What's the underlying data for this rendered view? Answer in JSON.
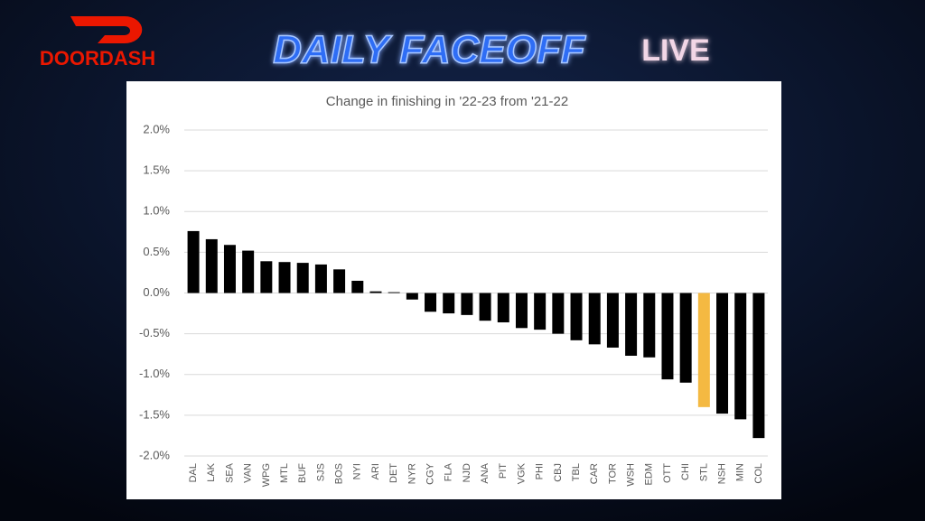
{
  "header": {
    "logo": "DOORDASH",
    "title": "DAILY FACEOFF",
    "badge": "LIVE"
  },
  "chart_data": {
    "type": "bar",
    "title": "Change in finishing in '22-23 from '21-22",
    "categories": [
      "DAL",
      "LAK",
      "SEA",
      "VAN",
      "WPG",
      "MTL",
      "BUF",
      "SJS",
      "BOS",
      "NYI",
      "ARI",
      "DET",
      "NYR",
      "CGY",
      "FLA",
      "NJD",
      "ANA",
      "PIT",
      "VGK",
      "PHI",
      "CBJ",
      "TBL",
      "CAR",
      "TOR",
      "WSH",
      "EDM",
      "OTT",
      "CHI",
      "STL",
      "NSH",
      "MIN",
      "COL"
    ],
    "values": [
      0.76,
      0.66,
      0.59,
      0.52,
      0.39,
      0.38,
      0.37,
      0.35,
      0.29,
      0.15,
      0.02,
      0.01,
      -0.08,
      -0.23,
      -0.25,
      -0.27,
      -0.34,
      -0.36,
      -0.43,
      -0.45,
      -0.5,
      -0.58,
      -0.63,
      -0.67,
      -0.77,
      -0.79,
      -1.06,
      -1.1,
      -1.4,
      -1.48,
      -1.55,
      -1.78
    ],
    "colors": [
      "#000000",
      "#000000",
      "#000000",
      "#000000",
      "#000000",
      "#000000",
      "#000000",
      "#000000",
      "#000000",
      "#000000",
      "#000000",
      "#000000",
      "#000000",
      "#000000",
      "#000000",
      "#000000",
      "#000000",
      "#000000",
      "#000000",
      "#000000",
      "#000000",
      "#000000",
      "#000000",
      "#000000",
      "#000000",
      "#000000",
      "#000000",
      "#000000",
      "#f4b942",
      "#000000",
      "#000000",
      "#000000"
    ],
    "ylim": [
      -2,
      2
    ],
    "yticks": [
      {
        "value": 2,
        "label": "2.0%"
      },
      {
        "value": 1.5,
        "label": "1.5%"
      },
      {
        "value": 1,
        "label": "1.0%"
      },
      {
        "value": 0.5,
        "label": "0.5%"
      },
      {
        "value": 0,
        "label": "0.0%"
      },
      {
        "value": -0.5,
        "label": "-0.5%"
      },
      {
        "value": -1,
        "label": "-1.0%"
      },
      {
        "value": -1.5,
        "label": "-1.5%"
      },
      {
        "value": -2,
        "label": "-2.0%"
      }
    ],
    "grid": true
  }
}
